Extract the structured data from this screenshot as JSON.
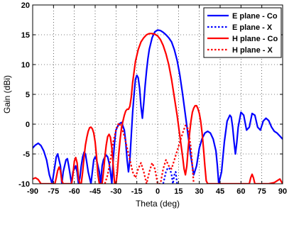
{
  "chart_data": {
    "type": "line",
    "xlabel": "Theta (deg)",
    "ylabel": "Gain (dBi)",
    "xlim": [
      -90,
      90
    ],
    "ylim": [
      -10,
      20
    ],
    "xticks": [
      "-90",
      "-75",
      "-60",
      "-45",
      "-30",
      "-15",
      "0",
      "15",
      "30",
      "45",
      "60",
      "75",
      "90"
    ],
    "yticks": [
      "-10",
      "-5",
      "0",
      "5",
      "10",
      "15",
      "20"
    ],
    "grid": "dotted",
    "legend_position": "top-right",
    "series": [
      {
        "name": "E plane - Co",
        "color": "#0000ff",
        "dash": "solid",
        "x": [
          -90,
          -88,
          -86,
          -84,
          -82,
          -80,
          -78,
          -76,
          -74,
          -73,
          -72,
          -70,
          -69,
          -68,
          -66,
          -65,
          -64,
          -62,
          -61,
          -60,
          -59,
          -58,
          -57,
          -56,
          -55,
          -54,
          -53,
          -52,
          -51,
          -50,
          -48,
          -46,
          -45,
          -44,
          -42,
          -41,
          -40,
          -39,
          -38,
          -37,
          -36,
          -35,
          -34,
          -33,
          -32,
          -31,
          -30,
          -28,
          -26,
          -24,
          -23,
          -22,
          -21,
          -20,
          -19,
          -18,
          -17,
          -16,
          -15,
          -14,
          -13,
          -12,
          -11,
          -10,
          -9,
          -8,
          -7,
          -6,
          -4,
          -2,
          0,
          2,
          4,
          6,
          8,
          10,
          12,
          14,
          16,
          18,
          20,
          22,
          24,
          26,
          28,
          30,
          32,
          34,
          36,
          38,
          40,
          42,
          43,
          44,
          46,
          48,
          50,
          52,
          53,
          54,
          55,
          56,
          57,
          58,
          60,
          62,
          64,
          66,
          68,
          70,
          72,
          74,
          76,
          78,
          80,
          82,
          84,
          86,
          88,
          90
        ],
        "y": [
          -4,
          -3.5,
          -3.2,
          -3.6,
          -4.5,
          -6,
          -8.5,
          -10,
          -7,
          -5.5,
          -5,
          -7,
          -10,
          -8,
          -6,
          -5.8,
          -7,
          -10,
          -8,
          -7.5,
          -7,
          -8,
          -10,
          -9,
          -7,
          -5.5,
          -4.7,
          -5,
          -6.5,
          -8,
          -10,
          -6,
          -5.5,
          -6,
          -8,
          -10,
          -7,
          -6,
          -5.5,
          -5.2,
          -5.5,
          -6.5,
          -8,
          -10,
          -6,
          -3,
          -1,
          0,
          0.3,
          -1,
          -3,
          -6,
          -8,
          -6,
          -2,
          2,
          5,
          7.5,
          8.2,
          7.8,
          6,
          3,
          1,
          3.5,
          6.5,
          9,
          11,
          12.6,
          14.5,
          15.5,
          15.8,
          15.7,
          15.4,
          15,
          14.5,
          13.8,
          12.5,
          10.7,
          8.2,
          5,
          1.5,
          -2,
          -5.5,
          -8.5,
          -7,
          -4,
          -2.4,
          -1.5,
          -1.2,
          -1.5,
          -2.5,
          -4.5,
          -7,
          -10,
          -8,
          -3,
          0.5,
          1.5,
          1.2,
          -0.5,
          -3,
          -5,
          -3,
          -0.5,
          2,
          1.5,
          -1,
          -0.5,
          1.8,
          1.5,
          -0.5,
          -1,
          0.5,
          1,
          0.6,
          -0.5,
          -1.2,
          -1.5,
          -2,
          -2.5
        ]
      },
      {
        "name": "E plane - X",
        "color": "#0000ff",
        "dash": "dotted",
        "x": [
          4,
          5,
          6,
          7,
          8,
          9,
          10,
          11,
          12,
          13,
          14
        ],
        "y": [
          -10,
          -9,
          -8,
          -7.5,
          -7.3,
          -7.6,
          -8.5,
          -10,
          -8.5,
          -8,
          -10
        ]
      },
      {
        "name": "H plane - Co",
        "color": "#ff0000",
        "dash": "solid",
        "x": [
          -90,
          -88,
          -86,
          -84,
          -82,
          -80,
          -76,
          -74,
          -73,
          -72,
          -71,
          -70,
          -69,
          -68,
          -67,
          -66,
          -64,
          -62,
          -61,
          -60,
          -59,
          -58,
          -57,
          -56,
          -55,
          -54,
          -53,
          -52,
          -51,
          -50,
          -49,
          -48,
          -47,
          -46,
          -45,
          -44,
          -43,
          -42,
          -41,
          -40,
          -39,
          -38,
          -37,
          -36,
          -35,
          -34,
          -33,
          -32,
          -31,
          -30,
          -29,
          -28,
          -27,
          -26,
          -25,
          -24,
          -23,
          -22,
          -21,
          -20,
          -19,
          -18,
          -16,
          -14,
          -12,
          -10,
          -8,
          -6,
          -4,
          -2,
          0,
          2,
          4,
          6,
          8,
          10,
          12,
          14,
          16,
          18,
          19,
          20,
          21,
          22,
          23,
          24,
          25,
          26,
          27,
          28,
          29,
          30,
          31,
          32,
          33,
          34,
          35,
          36,
          38,
          40,
          42,
          44,
          46,
          48,
          50,
          52,
          56,
          60,
          64,
          66,
          67,
          68,
          69,
          70,
          72,
          74,
          76,
          78,
          80,
          84,
          88,
          90
        ],
        "y": [
          -9.2,
          -9,
          -9.3,
          -10,
          -10,
          -10,
          -10,
          -10,
          -9,
          -7.8,
          -7.2,
          -7.8,
          -9.5,
          -10,
          -10,
          -10,
          -10,
          -10,
          -8.5,
          -6.2,
          -5.6,
          -6.5,
          -9,
          -10,
          -10,
          -8,
          -5.5,
          -3.5,
          -2.2,
          -1.2,
          -0.6,
          -0.5,
          -0.8,
          -1.5,
          -3,
          -5.5,
          -8.5,
          -10,
          -10,
          -10,
          -8,
          -5.5,
          -3.5,
          -2.1,
          -1.7,
          -2.2,
          -4,
          -7,
          -10,
          -10,
          -8,
          -5,
          -2.5,
          -0.5,
          0.5,
          1.5,
          2.2,
          2.5,
          2.5,
          3,
          4.5,
          7,
          10.5,
          12.5,
          13.8,
          14.5,
          15,
          15.2,
          15.2,
          15.1,
          14.8,
          14.2,
          13.2,
          11.8,
          10,
          7.5,
          4.5,
          1.5,
          -2,
          -5.5,
          -7.5,
          -8.5,
          -7,
          -4,
          -1.5,
          0.5,
          2,
          2.7,
          3.1,
          3.1,
          2.6,
          1.8,
          0.5,
          -1.5,
          -4,
          -7,
          -9.5,
          -10,
          -10,
          -10,
          -10,
          -10,
          -10,
          -10,
          -10,
          -10,
          -10,
          -10,
          -10,
          -10,
          -9,
          -8.4,
          -9,
          -10,
          -10,
          -10,
          -10,
          -10,
          -10,
          -9.8,
          -9.2,
          -10
        ]
      },
      {
        "name": "H plane - X",
        "color": "#ff0000",
        "dash": "dotted",
        "x": [
          -38,
          -36,
          -34,
          -32,
          -30,
          -28,
          -26,
          -24,
          -22,
          -20,
          -18,
          -16,
          -14,
          -12,
          -10,
          -8,
          -6,
          -4,
          -2,
          0,
          2,
          4,
          6,
          8,
          10,
          12,
          14,
          16,
          18,
          20,
          22,
          24,
          26
        ],
        "y": [
          -10,
          -8.5,
          -6,
          -3,
          -1,
          0.2,
          -0.5,
          -2,
          -4,
          -6,
          -8,
          -9,
          -7.5,
          -6.5,
          -8,
          -10,
          -8,
          -6.5,
          -7.5,
          -10,
          -10,
          -7.5,
          -6,
          -7,
          -7.5,
          -6,
          -4.5,
          -3,
          -1.5,
          -0.2,
          -0.8,
          -4,
          -10
        ]
      }
    ]
  }
}
